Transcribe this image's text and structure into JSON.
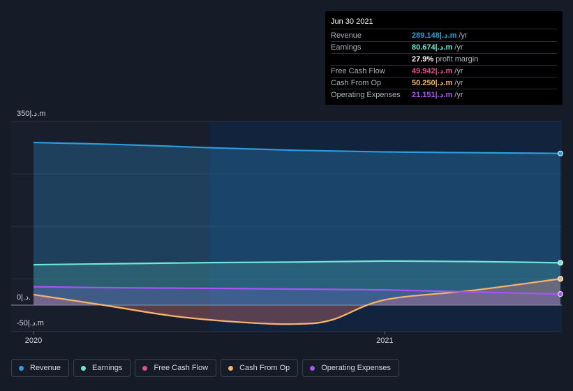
{
  "tooltip": {
    "date": "Jun 30 2021",
    "rows": [
      {
        "label": "Revenue",
        "value": "289.148|.د.m",
        "unit": "/yr",
        "color": "#2d9cdb"
      },
      {
        "label": "Earnings",
        "value": "80.674|.د.m",
        "unit": "/yr",
        "color": "#6ee7d6"
      },
      {
        "label": "",
        "value": "27.9%",
        "unit": "profit margin",
        "color": "#ffffff"
      },
      {
        "label": "Free Cash Flow",
        "value": "49.942|.د.m",
        "unit": "/yr",
        "color": "#e0508a"
      },
      {
        "label": "Cash From Op",
        "value": "50.250|.د.m",
        "unit": "/yr",
        "color": "#f2b56b"
      },
      {
        "label": "Operating Expenses",
        "value": "21.151|.د.m",
        "unit": "/yr",
        "color": "#a855f7"
      }
    ]
  },
  "legend": [
    {
      "label": "Revenue",
      "color": "#2d9cdb"
    },
    {
      "label": "Earnings",
      "color": "#6ee7d6"
    },
    {
      "label": "Free Cash Flow",
      "color": "#e0508a"
    },
    {
      "label": "Cash From Op",
      "color": "#f2b56b"
    },
    {
      "label": "Operating Expenses",
      "color": "#a855f7"
    }
  ],
  "chart_data": {
    "type": "area",
    "y_tick_labels": [
      "350|.د.m",
      "0|.د.",
      "-50|.د.m"
    ],
    "y_ticks": [
      350,
      0,
      -50
    ],
    "ylim": [
      -50,
      350
    ],
    "x_tick_labels": [
      "2020",
      "2021"
    ],
    "x_ticks": [
      2020.0,
      2021.0
    ],
    "xlim": [
      2019.94,
      2021.5
    ],
    "highlight_from": 2020.5,
    "grid": true,
    "series": [
      {
        "name": "Revenue",
        "color": "#2d9cdb",
        "x": [
          2020.0,
          2020.25,
          2020.5,
          2020.75,
          2021.0,
          2021.25,
          2021.5
        ],
        "y": [
          310,
          306,
          300,
          295,
          292,
          290.5,
          289.148
        ]
      },
      {
        "name": "Earnings",
        "color": "#6ee7d6",
        "x": [
          2020.0,
          2020.25,
          2020.5,
          2020.75,
          2021.0,
          2021.25,
          2021.5
        ],
        "y": [
          77,
          79,
          81,
          82,
          84,
          83,
          80.674
        ]
      },
      {
        "name": "Free Cash Flow",
        "color": "#e0508a",
        "x": [
          2020.0,
          2020.2,
          2020.4,
          2020.6,
          2020.75,
          2020.85,
          2021.0,
          2021.25,
          2021.5
        ],
        "y": [
          20,
          0,
          -21,
          -33,
          -36,
          -28,
          10,
          28,
          49.942
        ]
      },
      {
        "name": "Cash From Op",
        "color": "#f2b56b",
        "x": [
          2020.0,
          2020.2,
          2020.4,
          2020.6,
          2020.75,
          2020.85,
          2021.0,
          2021.25,
          2021.5
        ],
        "y": [
          20,
          0,
          -21,
          -33,
          -36,
          -28,
          10,
          28,
          50.25
        ]
      },
      {
        "name": "Operating Expenses",
        "color": "#a855f7",
        "x": [
          2020.0,
          2020.25,
          2020.5,
          2020.75,
          2021.0,
          2021.25,
          2021.5
        ],
        "y": [
          35,
          33,
          32,
          30.5,
          29,
          25,
          21.151
        ]
      }
    ]
  }
}
